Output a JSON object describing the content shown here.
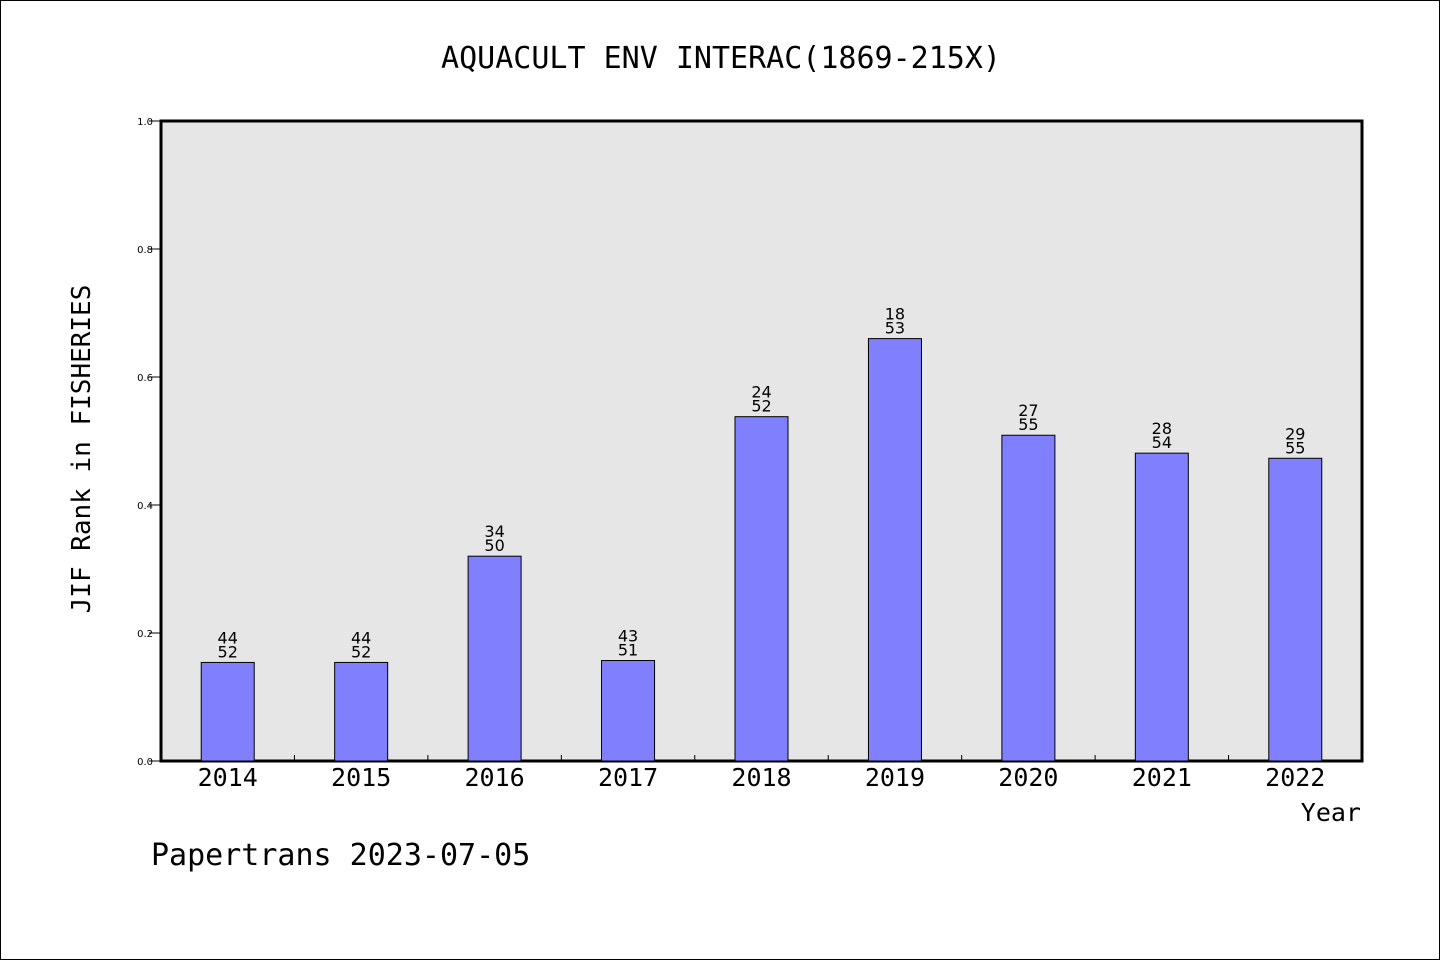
{
  "chart_data": {
    "type": "bar",
    "title": "AQUACULT ENV INTERAC(1869-215X)",
    "xlabel": "Year",
    "ylabel": "JIF Rank in FISHERIES",
    "ylim": [
      0,
      1.0
    ],
    "yticks": [
      "0.0",
      "0.2",
      "0.4",
      "0.6",
      "0.8",
      "1.0"
    ],
    "grid": false,
    "categories": [
      "2014",
      "2015",
      "2016",
      "2017",
      "2018",
      "2019",
      "2020",
      "2021",
      "2022"
    ],
    "values": [
      0.154,
      0.154,
      0.32,
      0.157,
      0.538,
      0.66,
      0.509,
      0.481,
      0.473
    ],
    "labels_top": [
      "44",
      "44",
      "34",
      "43",
      "24",
      "18",
      "27",
      "28",
      "29"
    ],
    "labels_bottom": [
      "52",
      "52",
      "50",
      "51",
      "52",
      "53",
      "55",
      "54",
      "55"
    ],
    "bar_color": "#8080ff",
    "plot_bg": "#e6e6e6"
  },
  "footer": "Papertrans 2023-07-05"
}
